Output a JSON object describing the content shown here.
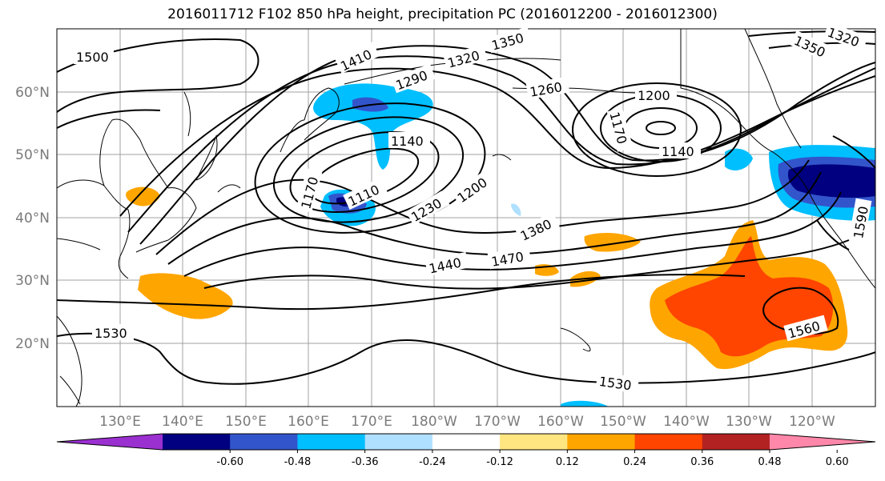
{
  "title": "2016011712 F102 850 hPa height, precipitation PC (2016012200 - 2016012300)",
  "lat_labels": [
    "60°N",
    "50°N",
    "40°N",
    "30°N",
    "20°N"
  ],
  "lon_labels": [
    "130°E",
    "140°E",
    "150°E",
    "160°E",
    "170°E",
    "180°W",
    "170°W",
    "160°W",
    "150°W",
    "140°W",
    "130°W",
    "120°W"
  ],
  "contour_labels": [
    "1500",
    "1410",
    "1350",
    "1320",
    "1290",
    "1260",
    "1200",
    "1170",
    "1140",
    "1140",
    "1170",
    "1110",
    "1230",
    "1200",
    "1380",
    "1440",
    "1470",
    "1530",
    "1530",
    "1560",
    "1590",
    "1350",
    "1320"
  ],
  "colorbar": {
    "colors": [
      "#9b30d0",
      "#000080",
      "#3355cc",
      "#00bfff",
      "#b0e0ff",
      "#ffffff",
      "#ffe680",
      "#ffa500",
      "#ff4500",
      "#b22222",
      "#ff88aa"
    ],
    "ticks": [
      "-0.60",
      "-0.48",
      "-0.36",
      "-0.24",
      "-0.12",
      "0.12",
      "0.24",
      "0.36",
      "0.48",
      "0.60"
    ]
  }
}
